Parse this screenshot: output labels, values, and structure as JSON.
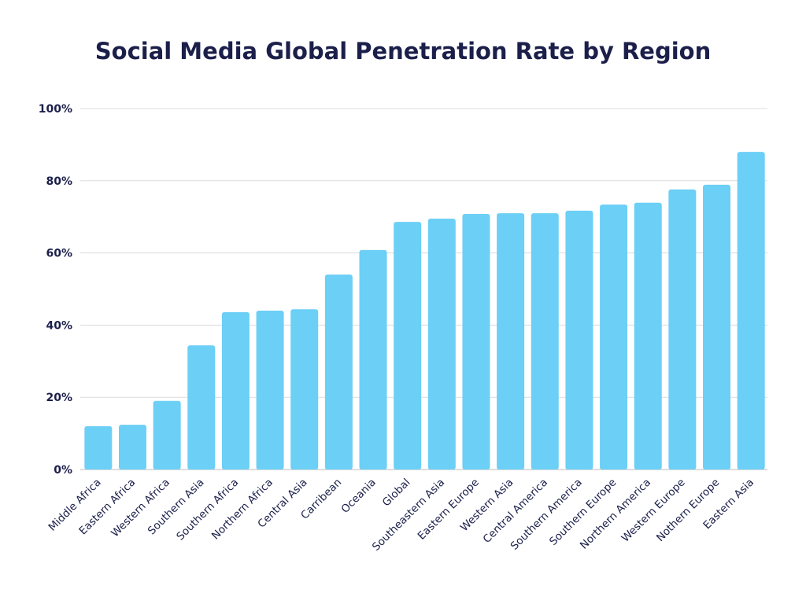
{
  "chart_data": {
    "type": "bar",
    "title": "Social Media Global Penetration Rate by Region",
    "xlabel": "",
    "ylabel": "",
    "ylim": [
      0,
      100
    ],
    "yticks": [
      "0%",
      "20%",
      "40%",
      "60%",
      "80%",
      "100%"
    ],
    "grid": true,
    "bar_color": "#6ccff6",
    "categories": [
      "Middle Africa",
      "Eastern Africa",
      "Western Africa",
      "Southern Asia",
      "Southern Africa",
      "Northern Africa",
      "Central Asia",
      "Carribean",
      "Oceania",
      "Global",
      "Southeastern Asia",
      "Eastern Europe",
      "Western Asia",
      "Central America",
      "Southern America",
      "Southern Europe",
      "Northern America",
      "Western Europe",
      "Nothern Europe",
      "Eastern Asia"
    ],
    "values": [
      12,
      12.4,
      19,
      34.4,
      43.6,
      44,
      44.4,
      54,
      60.8,
      68.6,
      69.5,
      70.8,
      71,
      71,
      71.7,
      73.4,
      73.9,
      77.6,
      78.9,
      88
    ]
  }
}
